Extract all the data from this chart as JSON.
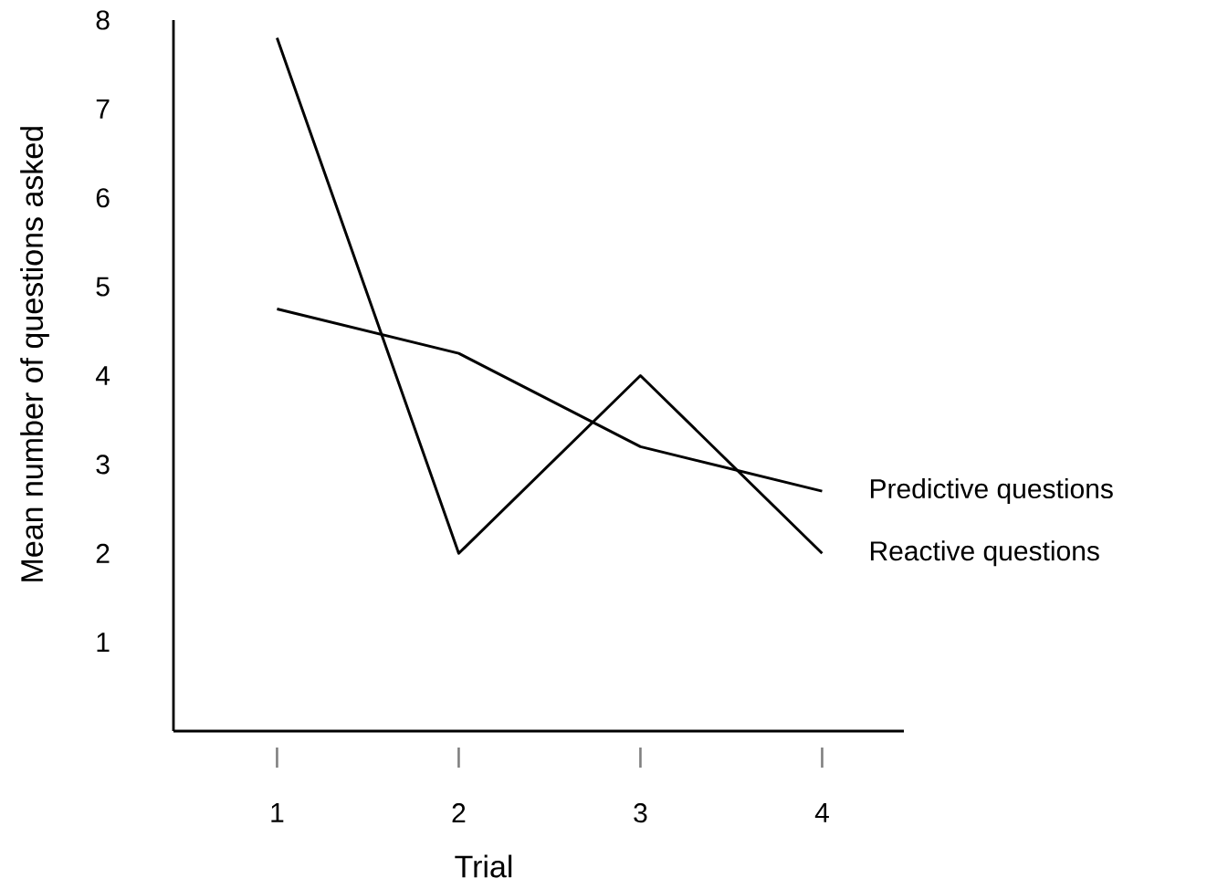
{
  "chart_data": {
    "type": "line",
    "xlabel": "Trial",
    "ylabel": "Mean number of questions asked",
    "x": [
      1,
      2,
      3,
      4
    ],
    "xlim": [
      0.43,
      4.45
    ],
    "xticks": [
      1,
      2,
      3,
      4
    ],
    "ylim": [
      0,
      8
    ],
    "yticks": [
      1,
      2,
      3,
      4,
      5,
      6,
      7,
      8
    ],
    "marker": "none",
    "line_style": "solid",
    "series": [
      {
        "name": "Predictive questions",
        "color": "#000000",
        "values": [
          4.75,
          4.25,
          3.2,
          2.7
        ]
      },
      {
        "name": "Reactive questions",
        "color": "#000000",
        "values": [
          7.8,
          2.0,
          4.0,
          2.0
        ]
      }
    ]
  }
}
